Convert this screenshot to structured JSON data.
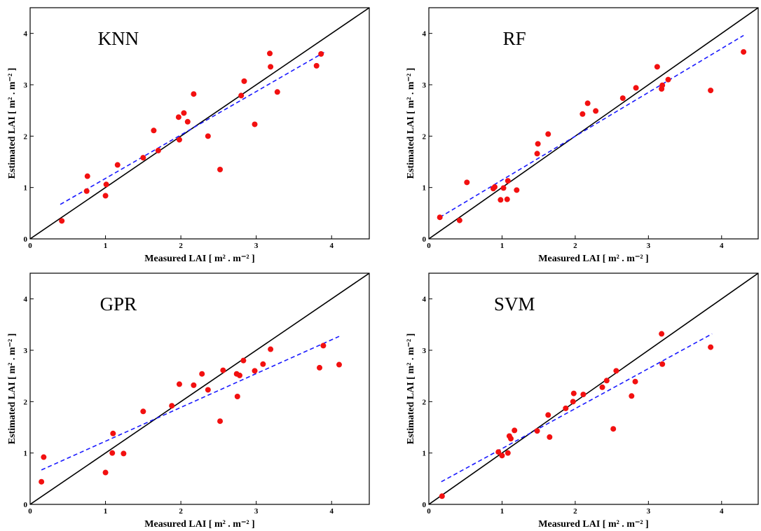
{
  "chart_data": [
    {
      "type": "scatter",
      "title": "KNN",
      "xlabel": "Measured LAI [ m² . m⁻² ]",
      "ylabel": "Estimated LAI [ m² . m⁻² ]",
      "xlim": [
        0,
        4.5
      ],
      "ylim": [
        0,
        4.5
      ],
      "xticks": [
        "0",
        "1",
        "2",
        "3",
        "4"
      ],
      "yticks": [
        "0",
        "1",
        "2",
        "3",
        "4"
      ],
      "grid": false,
      "identity_line": [
        [
          0,
          0
        ],
        [
          4.5,
          4.5
        ]
      ],
      "fit_line": [
        [
          0.4,
          0.67
        ],
        [
          3.9,
          3.63
        ]
      ],
      "points": [
        [
          0.42,
          0.35
        ],
        [
          0.75,
          0.93
        ],
        [
          0.76,
          1.22
        ],
        [
          1.0,
          0.84
        ],
        [
          1.01,
          1.06
        ],
        [
          1.16,
          1.44
        ],
        [
          1.5,
          1.58
        ],
        [
          1.64,
          2.11
        ],
        [
          1.7,
          1.72
        ],
        [
          1.97,
          2.37
        ],
        [
          1.98,
          1.93
        ],
        [
          2.04,
          2.45
        ],
        [
          2.09,
          2.28
        ],
        [
          2.17,
          2.82
        ],
        [
          2.36,
          2.0
        ],
        [
          2.52,
          1.35
        ],
        [
          2.8,
          2.79
        ],
        [
          2.84,
          3.07
        ],
        [
          2.98,
          2.23
        ],
        [
          3.18,
          3.61
        ],
        [
          3.19,
          3.35
        ],
        [
          3.28,
          2.86
        ],
        [
          3.8,
          3.37
        ],
        [
          3.86,
          3.6
        ]
      ]
    },
    {
      "type": "scatter",
      "title": "RF",
      "xlabel": "Measured LAI [ m² . m⁻² ]",
      "ylabel": "Estimated LAI [ m² . m⁻² ]",
      "xlim": [
        0,
        4.5
      ],
      "ylim": [
        0,
        4.5
      ],
      "xticks": [
        "0",
        "1",
        "2",
        "3",
        "4"
      ],
      "yticks": [
        "0",
        "1",
        "2",
        "3",
        "4"
      ],
      "grid": false,
      "identity_line": [
        [
          0,
          0
        ],
        [
          4.5,
          4.5
        ]
      ],
      "fit_line": [
        [
          0.15,
          0.42
        ],
        [
          4.3,
          3.96
        ]
      ],
      "points": [
        [
          0.15,
          0.42
        ],
        [
          0.42,
          0.36
        ],
        [
          0.52,
          1.1
        ],
        [
          0.88,
          0.98
        ],
        [
          0.9,
          1.01
        ],
        [
          0.98,
          0.76
        ],
        [
          1.02,
          0.99
        ],
        [
          1.07,
          0.77
        ],
        [
          1.08,
          1.13
        ],
        [
          1.2,
          0.95
        ],
        [
          1.48,
          1.66
        ],
        [
          1.49,
          1.85
        ],
        [
          1.63,
          2.04
        ],
        [
          2.1,
          2.43
        ],
        [
          2.17,
          2.64
        ],
        [
          2.28,
          2.49
        ],
        [
          2.65,
          2.74
        ],
        [
          2.83,
          2.94
        ],
        [
          3.12,
          3.35
        ],
        [
          3.18,
          2.92
        ],
        [
          3.19,
          2.99
        ],
        [
          3.27,
          3.1
        ],
        [
          3.85,
          2.89
        ],
        [
          4.3,
          3.64
        ]
      ]
    },
    {
      "type": "scatter",
      "title": "GPR",
      "xlabel": "Measured LAI [ m² . m⁻² ]",
      "ylabel": "Estimated LAI [ m² . m⁻² ]",
      "xlim": [
        0,
        4.5
      ],
      "ylim": [
        0,
        4.5
      ],
      "xticks": [
        "0",
        "1",
        "2",
        "3",
        "4"
      ],
      "yticks": [
        "0",
        "1",
        "2",
        "3",
        "4"
      ],
      "grid": false,
      "identity_line": [
        [
          0,
          0
        ],
        [
          4.5,
          4.5
        ]
      ],
      "fit_line": [
        [
          0.15,
          0.67
        ],
        [
          4.1,
          3.27
        ]
      ],
      "points": [
        [
          0.15,
          0.44
        ],
        [
          0.18,
          0.92
        ],
        [
          1.0,
          0.62
        ],
        [
          1.09,
          1.0
        ],
        [
          1.1,
          1.38
        ],
        [
          1.24,
          0.99
        ],
        [
          1.5,
          1.81
        ],
        [
          1.88,
          1.92
        ],
        [
          1.98,
          2.34
        ],
        [
          2.17,
          2.32
        ],
        [
          2.28,
          2.54
        ],
        [
          2.36,
          2.23
        ],
        [
          2.52,
          1.62
        ],
        [
          2.56,
          2.61
        ],
        [
          2.74,
          2.54
        ],
        [
          2.75,
          2.1
        ],
        [
          2.78,
          2.51
        ],
        [
          2.83,
          2.8
        ],
        [
          2.98,
          2.6
        ],
        [
          3.09,
          2.73
        ],
        [
          3.19,
          3.02
        ],
        [
          3.84,
          2.66
        ],
        [
          3.89,
          3.09
        ],
        [
          4.1,
          2.72
        ]
      ]
    },
    {
      "type": "scatter",
      "title": "SVM",
      "xlabel": "Measured LAI [ m² . m⁻² ]",
      "ylabel": "Estimated LAI [ m² . m⁻² ]",
      "xlim": [
        0,
        4.5
      ],
      "ylim": [
        0,
        4.5
      ],
      "xticks": [
        "0",
        "1",
        "2",
        "3",
        "4"
      ],
      "yticks": [
        "0",
        "1",
        "2",
        "3",
        "4"
      ],
      "grid": false,
      "identity_line": [
        [
          0,
          0
        ],
        [
          4.5,
          4.5
        ]
      ],
      "fit_line": [
        [
          0.17,
          0.44
        ],
        [
          3.87,
          3.32
        ]
      ],
      "points": [
        [
          0.18,
          0.16
        ],
        [
          0.95,
          1.02
        ],
        [
          1.0,
          0.95
        ],
        [
          1.08,
          1.0
        ],
        [
          1.1,
          1.33
        ],
        [
          1.12,
          1.28
        ],
        [
          1.17,
          1.44
        ],
        [
          1.48,
          1.43
        ],
        [
          1.63,
          1.74
        ],
        [
          1.65,
          1.31
        ],
        [
          1.87,
          1.87
        ],
        [
          1.97,
          2.0
        ],
        [
          1.98,
          2.16
        ],
        [
          2.11,
          2.14
        ],
        [
          2.37,
          2.28
        ],
        [
          2.43,
          2.41
        ],
        [
          2.52,
          1.47
        ],
        [
          2.56,
          2.6
        ],
        [
          2.77,
          2.11
        ],
        [
          2.82,
          2.39
        ],
        [
          3.18,
          3.32
        ],
        [
          3.19,
          2.73
        ],
        [
          3.85,
          3.06
        ]
      ]
    }
  ]
}
